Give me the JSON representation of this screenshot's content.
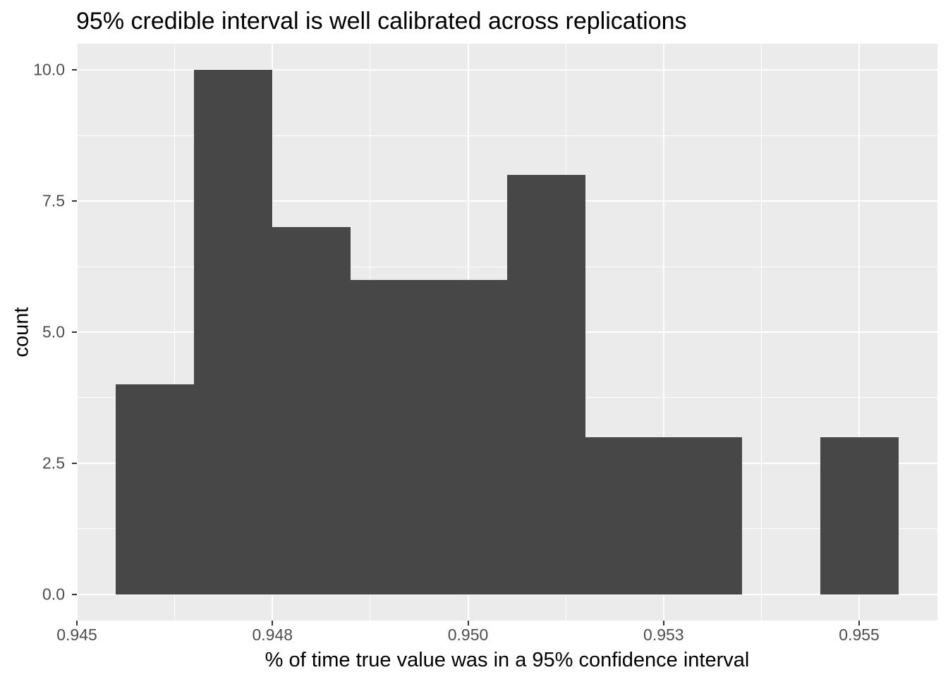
{
  "chart_data": {
    "type": "bar",
    "subtype": "histogram",
    "title": "95% credible interval is well calibrated across replications",
    "xlabel": "% of time true value was in a 95% confidence interval",
    "ylabel": "count",
    "xlim": [
      0.945,
      0.956
    ],
    "ylim": [
      -0.5,
      10.5
    ],
    "binwidth": 0.001,
    "bins": [
      {
        "x0": 0.9455,
        "x1": 0.9465,
        "count": 4
      },
      {
        "x0": 0.9465,
        "x1": 0.9475,
        "count": 10
      },
      {
        "x0": 0.9475,
        "x1": 0.9485,
        "count": 7
      },
      {
        "x0": 0.9485,
        "x1": 0.9495,
        "count": 6
      },
      {
        "x0": 0.9495,
        "x1": 0.9505,
        "count": 6
      },
      {
        "x0": 0.9505,
        "x1": 0.9515,
        "count": 8
      },
      {
        "x0": 0.9515,
        "x1": 0.9525,
        "count": 3
      },
      {
        "x0": 0.9525,
        "x1": 0.9535,
        "count": 3
      },
      {
        "x0": 0.9535,
        "x1": 0.9545,
        "count": 0
      },
      {
        "x0": 0.9545,
        "x1": 0.9555,
        "count": 3
      }
    ],
    "x_ticks": [
      {
        "value": 0.945,
        "label": "0.945"
      },
      {
        "value": 0.9475,
        "label": "0.948"
      },
      {
        "value": 0.95,
        "label": "0.950"
      },
      {
        "value": 0.9525,
        "label": "0.953"
      },
      {
        "value": 0.955,
        "label": "0.955"
      }
    ],
    "x_minor": [
      0.94625,
      0.94875,
      0.95125,
      0.95375
    ],
    "y_ticks": [
      {
        "value": 0,
        "label": "0.0"
      },
      {
        "value": 2.5,
        "label": "2.5"
      },
      {
        "value": 5,
        "label": "5.0"
      },
      {
        "value": 7.5,
        "label": "7.5"
      },
      {
        "value": 10,
        "label": "10.0"
      }
    ],
    "y_minor": [
      1.25,
      3.75,
      6.25,
      8.75
    ],
    "grid": true,
    "legend": false,
    "colors": {
      "bar": "#474747",
      "panel_background": "#EBEBEB",
      "gridline": "#FFFFFF",
      "tick_mark": "#333333",
      "tick_label": "#4D4D4D",
      "title": "#000000"
    }
  }
}
